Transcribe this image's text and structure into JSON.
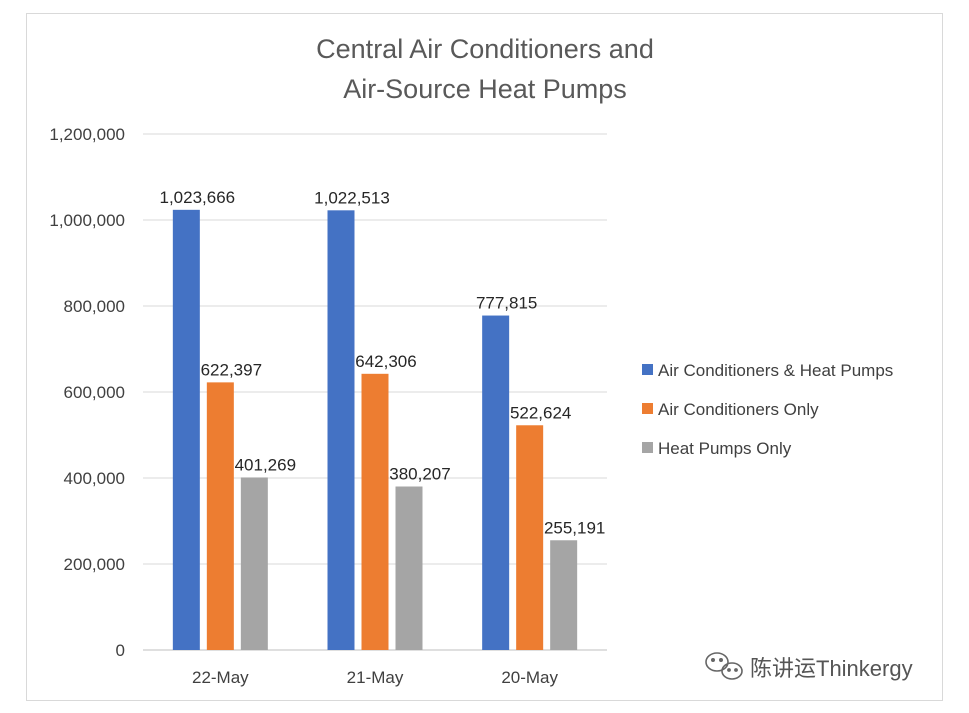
{
  "chart_data": {
    "type": "bar",
    "title_lines": [
      "Central Air Conditioners and",
      "Air-Source Heat Pumps"
    ],
    "categories": [
      "22-May",
      "21-May",
      "20-May"
    ],
    "series": [
      {
        "name": "Air Conditioners & Heat Pumps",
        "color": "#4472c4",
        "values": [
          1023666,
          1022513,
          777815
        ]
      },
      {
        "name": "Air Conditioners Only",
        "color": "#ed7d31",
        "values": [
          622397,
          642306,
          522624
        ]
      },
      {
        "name": "Heat Pumps Only",
        "color": "#a5a5a5",
        "values": [
          401269,
          380207,
          255191
        ]
      }
    ],
    "ylim": [
      0,
      1200000
    ],
    "yticks": [
      0,
      200000,
      400000,
      600000,
      800000,
      1000000,
      1200000
    ],
    "ytick_labels": [
      "0",
      "200,000",
      "400,000",
      "600,000",
      "800,000",
      "1,000,000",
      "1,200,000"
    ],
    "data_labels": [
      [
        "1,023,666",
        "1,022,513",
        "777,815"
      ],
      [
        "622,397",
        "642,306",
        "522,624"
      ],
      [
        "401,269",
        "380,207",
        "255,191"
      ]
    ],
    "grid": true,
    "legend_position": "right"
  },
  "watermark": {
    "text": "陈讲运Thinkergy",
    "icon": "wechat-icon"
  }
}
